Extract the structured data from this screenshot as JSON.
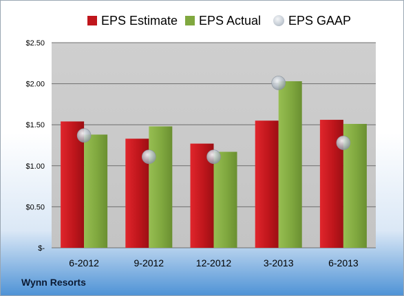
{
  "company": "Wynn Resorts",
  "chart_data": {
    "type": "bar",
    "categories": [
      "6-2012",
      "9-2012",
      "12-2012",
      "3-2013",
      "6-2013"
    ],
    "series": [
      {
        "name": "EPS Estimate",
        "type": "bar",
        "color": "#c0161c",
        "values": [
          1.54,
          1.33,
          1.27,
          1.55,
          1.56
        ]
      },
      {
        "name": "EPS Actual",
        "type": "bar",
        "color": "#80a83f",
        "values": [
          1.38,
          1.48,
          1.17,
          2.03,
          1.51
        ]
      },
      {
        "name": "EPS GAAP",
        "type": "scatter",
        "color": "#b7bfc8",
        "values": [
          1.37,
          1.11,
          1.11,
          2.01,
          1.28
        ]
      }
    ],
    "ylim": [
      0,
      2.5
    ],
    "yticks": [
      0,
      0.5,
      1.0,
      1.5,
      2.0,
      2.5
    ],
    "ytick_labels": [
      "$-",
      "$0.50",
      "$1.00",
      "$1.50",
      "$2.00",
      "$2.50"
    ],
    "grid": true,
    "legend_position": "top"
  }
}
